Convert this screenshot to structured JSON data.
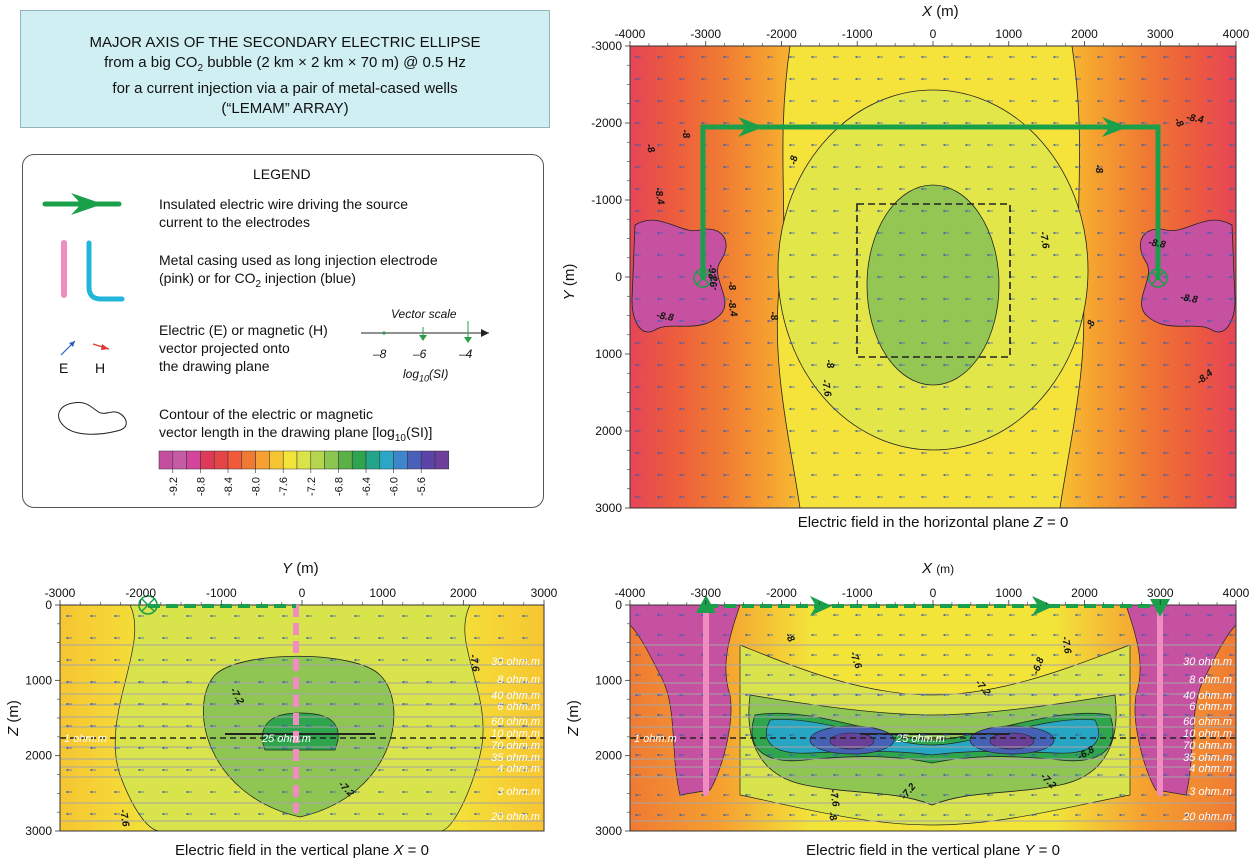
{
  "title": {
    "line1": "MAJOR AXIS OF THE SECONDARY ELECTRIC ELLIPSE",
    "line2_pre": "from a big CO",
    "line2_sub": "2",
    "line2_post": " bubble (2 km × 2 km × 70 m) @ 0.5 Hz",
    "line3": "for a current injection via a pair of metal-cased wells",
    "line4": "(“LEMAM” ARRAY)"
  },
  "legend": {
    "heading": "LEGEND",
    "wire_line1": "Insulated electric wire driving the source",
    "wire_line2": "current to the electrodes",
    "casing_line1": "Metal casing used as long injection electrode",
    "casing_line2_pre": "(pink) or for CO",
    "casing_line2_sub": "2",
    "casing_line2_post": " injection (blue)",
    "vector_line1": "Electric (E) or magnetic (H)",
    "vector_line2": "vector projected onto",
    "vector_line3": "the drawing plane",
    "e_label": "E",
    "h_label": "H",
    "vector_scale_title": "Vector scale",
    "vector_scale_ticks": [
      "–8",
      "–6",
      "–4"
    ],
    "vector_scale_unit_pre": "log",
    "vector_scale_unit_sub": "10",
    "vector_scale_unit_post": "(SI)",
    "contour_line1": "Contour of the electric or magnetic",
    "contour_line2_pre": "vector length in the drawing plane [log",
    "contour_line2_sub": "10",
    "contour_line2_post": "(SI)]",
    "colorbar_colors": [
      "#c44f9e",
      "#c65aa5",
      "#d2459a",
      "#e03a5a",
      "#e64545",
      "#ef5b3a",
      "#f07a33",
      "#f5a030",
      "#f7c531",
      "#f3e43a",
      "#d9e44b",
      "#b4d54d",
      "#8cc450",
      "#5bb048",
      "#2fa44f",
      "#23a58c",
      "#2ba6c7",
      "#3d86cc",
      "#4a5fb8",
      "#5a45a6",
      "#6d3f98"
    ],
    "colorbar_labels": [
      "-9.2",
      "-8.8",
      "-8.4",
      "-8.0",
      "-7.6",
      "-7.2",
      "-6.8",
      "-6.4",
      "-6.0",
      "-5.6"
    ]
  },
  "colors": {
    "wire": "#1aa04a",
    "pink_casing": "#f08cc0",
    "blue_casing": "#21b5dc",
    "arrow": "#3a5fb0"
  },
  "panels": {
    "top_right": {
      "x_axis_title": "X",
      "x_axis_unit": "(m)",
      "y_axis_title": "Y",
      "y_axis_unit": "(m)",
      "x_ticks": [
        "-4000",
        "-3000",
        "-2000",
        "-1000",
        "0",
        "1000",
        "2000",
        "3000",
        "4000"
      ],
      "y_ticks": [
        "-3000",
        "-2000",
        "-1000",
        "0",
        "1000",
        "2000",
        "3000"
      ],
      "caption_pre": "Electric field in the horizontal plane ",
      "caption_var": "Z",
      "caption_post": " = 0",
      "contour_labels": [
        "-8",
        "-8",
        "-8",
        "-8",
        "-8",
        "-8",
        "-8",
        "-8",
        "-8",
        "-8.4",
        "-8.4",
        "-8.4",
        "-8.4",
        "-8.8",
        "-8.8",
        "-8.8",
        "-9.2",
        "-9.2",
        "-7.6",
        "-7.6"
      ]
    },
    "bottom_left": {
      "x_axis_title": "Y",
      "x_axis_unit": "(m)",
      "y_axis_title": "Z",
      "y_axis_unit": "(m)",
      "x_ticks": [
        "-3000",
        "-2000",
        "-1000",
        "0",
        "1000",
        "2000",
        "3000"
      ],
      "y_ticks": [
        "0",
        "1000",
        "2000",
        "3000"
      ],
      "caption_pre": "Electric field in the vertical plane ",
      "caption_var": "X",
      "caption_post": " = 0",
      "contour_labels": [
        "-7.2",
        "-7.2",
        "-7.6",
        "-7.6"
      ],
      "layer_labels": [
        "30 ohm.m",
        "8 ohm.m",
        "40 ohm.m",
        "6 ohm.m",
        "60 ohm.m",
        "10 ohm.m",
        "70 ohm.m",
        "35 ohm.m",
        "4 ohm.m",
        "3 ohm.m",
        "20 ohm.m"
      ],
      "reservoir_left_label": "1 ohm.m",
      "reservoir_center_label": "25 ohm.m"
    },
    "bottom_right": {
      "x_axis_title": "X",
      "x_axis_unit": "(m)",
      "y_axis_title": "Z",
      "y_axis_unit": "(m)",
      "x_ticks": [
        "-4000",
        "-3000",
        "-2000",
        "-1000",
        "0",
        "1000",
        "2000",
        "3000",
        "4000"
      ],
      "y_ticks": [
        "0",
        "1000",
        "2000",
        "3000"
      ],
      "caption_pre": "Electric field in the vertical plane ",
      "caption_var": "Y",
      "caption_post": " = 0",
      "contour_labels": [
        "-8",
        "-7.6",
        "-7.2",
        "-6.8",
        "-7.6",
        "-7.2",
        "-7.6",
        "-8",
        "-7.2",
        "-6.8"
      ],
      "layer_labels": [
        "30 ohm.m",
        "8 ohm.m",
        "40 ohm.m",
        "6 ohm.m",
        "60 ohm.m",
        "10 ohm.m",
        "70 ohm.m",
        "35 ohm.m",
        "4 ohm.m",
        "3 ohm.m",
        "20 ohm.m"
      ],
      "reservoir_left_label": "1 ohm.m",
      "reservoir_center_label": "25 ohm.m"
    }
  },
  "chart_data": [
    {
      "type": "heatmap",
      "title": "Electric field in the horizontal plane Z = 0",
      "xlabel": "X (m)",
      "ylabel": "Y (m)",
      "xlim": [
        -4000,
        4000
      ],
      "ylim": [
        3000,
        -3000
      ],
      "contour_levels": [
        -9.2,
        -8.8,
        -8.4,
        -8.0,
        -7.6,
        -7.2
      ],
      "wells_x": [
        -3000,
        3000
      ],
      "wire_y": -2000,
      "bubble_box": {
        "x": [
          -1000,
          1000
        ],
        "y": [
          -1000,
          1000
        ]
      }
    },
    {
      "type": "heatmap",
      "title": "Electric field in the vertical plane X = 0",
      "xlabel": "Y (m)",
      "ylabel": "Z (m)",
      "xlim": [
        -3000,
        3000
      ],
      "ylim": [
        3000,
        0
      ],
      "contour_levels": [
        -7.6,
        -7.2,
        -6.8
      ],
      "reservoir_depth": 1750
    },
    {
      "type": "heatmap",
      "title": "Electric field in the vertical plane Y = 0",
      "xlabel": "X (m)",
      "ylabel": "Z (m)",
      "xlim": [
        -4000,
        4000
      ],
      "ylim": [
        3000,
        0
      ],
      "contour_levels": [
        -8.0,
        -7.6,
        -7.2,
        -6.8,
        -6.4,
        -6.0,
        -5.6
      ],
      "wells_x": [
        -3000,
        3000
      ],
      "reservoir_depth": 1750
    }
  ]
}
